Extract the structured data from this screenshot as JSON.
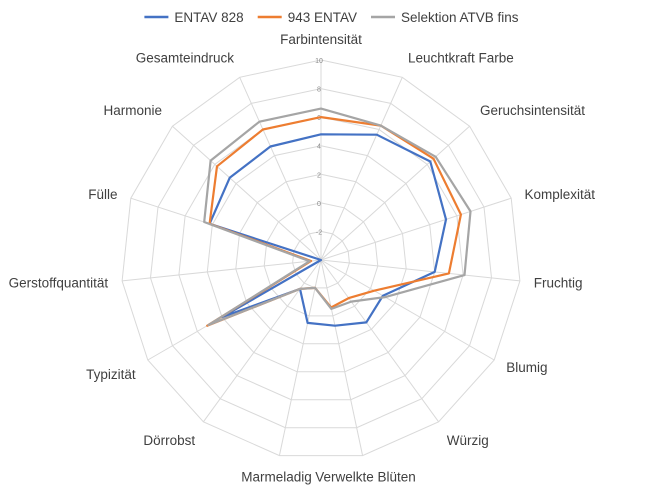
{
  "chart_data": {
    "type": "radar",
    "title": "",
    "categories": [
      "Farbintensität",
      "Leuchtkraft Farbe",
      "Geruchsintensität",
      "Komplexität",
      "Fruchtig",
      "Blumig",
      "Würzig",
      "Verwelkte Blüten",
      "Marmeladig",
      "Dörrobst",
      "Typizität",
      "Gerstoffquantität",
      "Fülle",
      "Harmonie",
      "Gesamteindruck"
    ],
    "rlim": [
      -4,
      10
    ],
    "ticks": [
      -2,
      0,
      2,
      4,
      6,
      8,
      10
    ],
    "tick_labels": [
      "-2",
      "0",
      "2",
      "4",
      "6",
      "8",
      "10"
    ],
    "grid": true,
    "legend_position": "top",
    "series": [
      {
        "name": "ENTAV 828",
        "color": "#4472C4",
        "values": [
          4.8,
          5.6,
          6.3,
          5.2,
          4.0,
          1.0,
          1.4,
          0.7,
          0.5,
          -1.5,
          4.0,
          -4.0,
          4.2,
          4.6,
          4.7
        ]
      },
      {
        "name": "943 ENTAV",
        "color": "#ED7D31",
        "values": [
          6.0,
          6.3,
          6.6,
          6.3,
          5.0,
          0.3,
          -0.7,
          -0.6,
          -2.0,
          -1.5,
          5.2,
          -3.3,
          4.2,
          5.8,
          6.0
        ]
      },
      {
        "name": "Selektion ATVB fins",
        "color": "#A5A5A5",
        "values": [
          6.6,
          6.3,
          6.8,
          7.0,
          6.1,
          1.2,
          -0.4,
          -0.5,
          -2.0,
          -1.5,
          5.1,
          -3.2,
          4.6,
          6.4,
          6.6
        ]
      }
    ]
  }
}
